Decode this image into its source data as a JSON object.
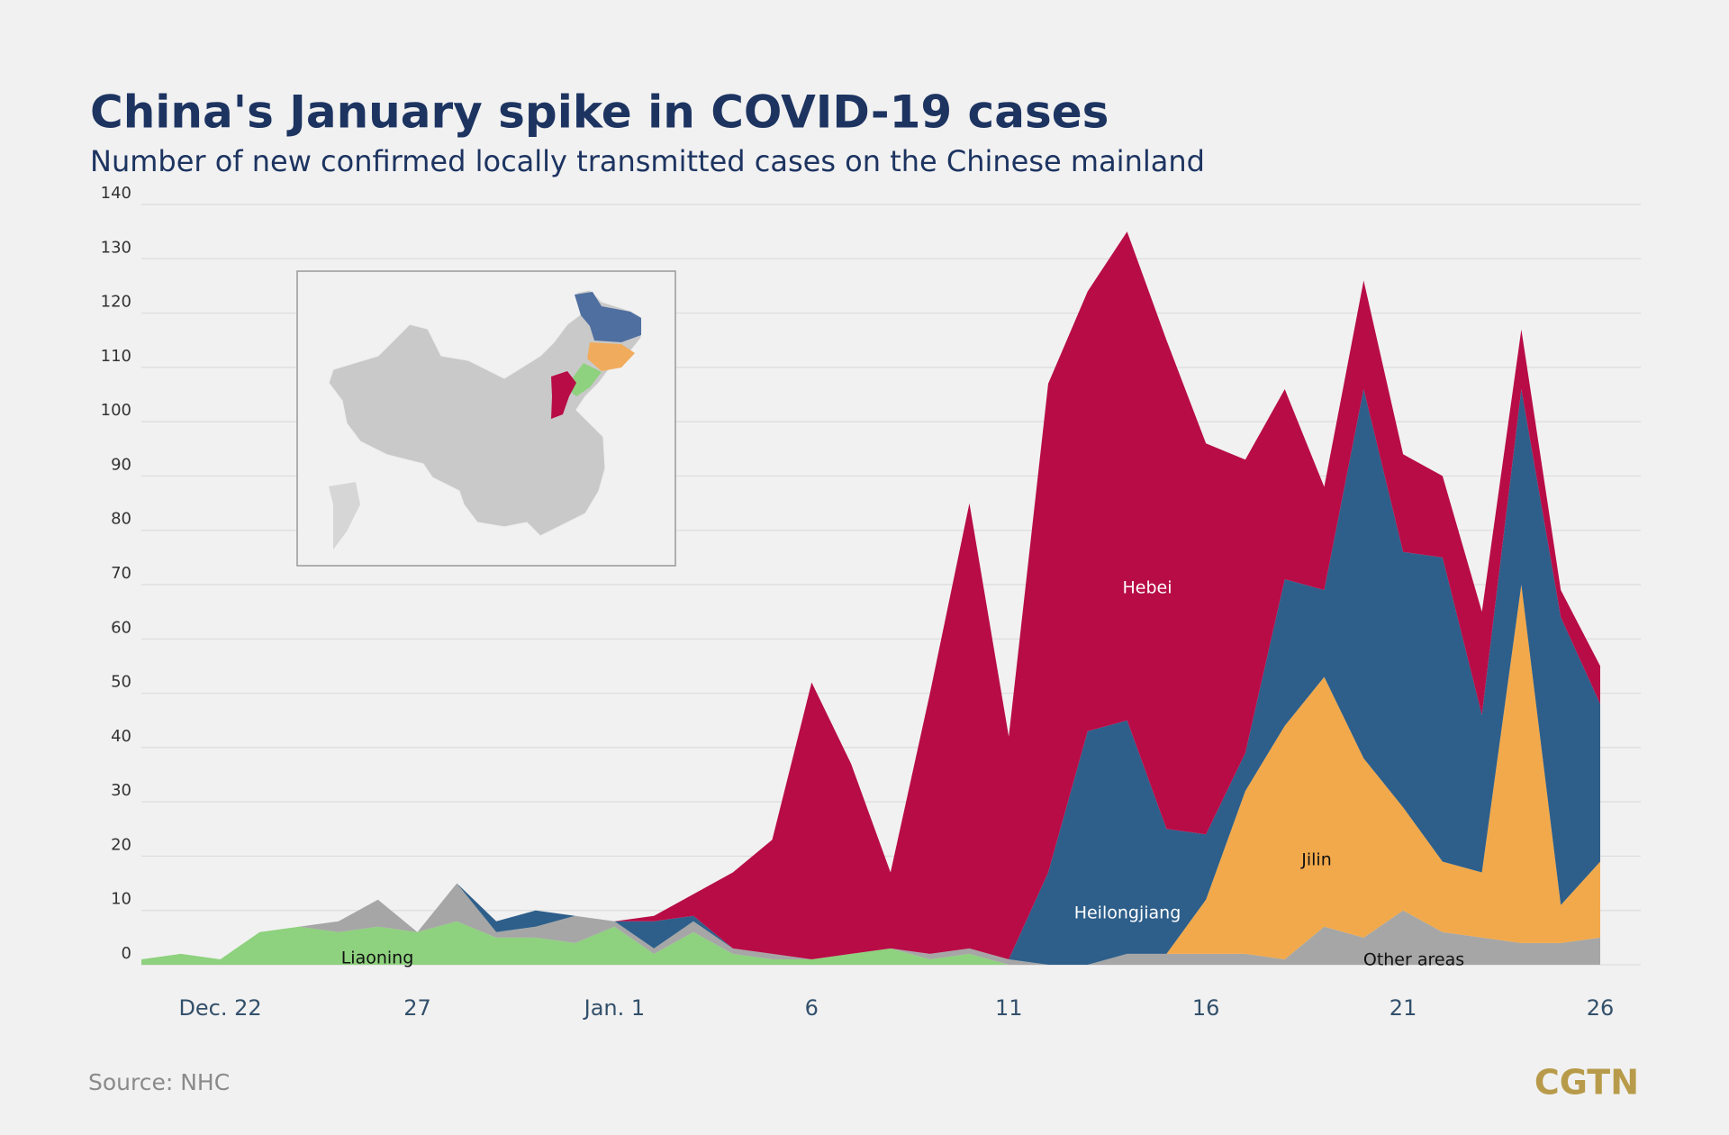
{
  "chart_data": {
    "type": "stacked_area",
    "title": "China's January spike in COVID-19 cases",
    "subtitle": "Number of new confirmed locally transmitted cases on the Chinese mainland",
    "source": "Source: NHC",
    "logo": "CGTN",
    "categories": [
      null,
      null,
      "Dec. 22",
      null,
      null,
      null,
      null,
      "27",
      null,
      null,
      null,
      null,
      "Jan. 1",
      null,
      null,
      null,
      null,
      "6",
      null,
      null,
      null,
      null,
      "11",
      null,
      null,
      null,
      null,
      "16",
      null,
      null,
      null,
      null,
      "21",
      null,
      null,
      null,
      null,
      "26"
    ],
    "ylim": [
      0,
      140
    ],
    "yticks": [
      0,
      10,
      20,
      30,
      40,
      50,
      60,
      70,
      80,
      90,
      100,
      110,
      120,
      130,
      140
    ],
    "grid": true,
    "series": [
      {
        "name": "Liaoning",
        "color": "#8ed17e",
        "values": [
          1,
          2,
          1,
          6,
          7,
          6,
          7,
          6,
          8,
          5,
          5,
          4,
          7,
          2,
          6,
          2,
          1,
          1,
          2,
          3,
          1,
          2,
          0,
          0,
          0,
          0,
          0,
          0,
          0,
          0,
          0,
          0,
          0,
          0,
          0,
          0,
          0,
          0
        ]
      },
      {
        "name": "Other areas",
        "color": "#a6a6a6",
        "values": [
          0,
          0,
          0,
          0,
          0,
          2,
          5,
          0,
          7,
          1,
          2,
          5,
          1,
          1,
          2,
          1,
          1,
          0,
          0,
          0,
          1,
          1,
          1,
          0,
          0,
          2,
          2,
          2,
          2,
          1,
          7,
          5,
          10,
          6,
          5,
          4,
          4,
          5
        ]
      },
      {
        "name": "Jilin",
        "color": "#f2a94b",
        "values": [
          0,
          0,
          0,
          0,
          0,
          0,
          0,
          0,
          0,
          0,
          0,
          0,
          0,
          0,
          0,
          0,
          0,
          0,
          0,
          0,
          0,
          0,
          0,
          0,
          0,
          0,
          0,
          10,
          30,
          43,
          46,
          33,
          19,
          13,
          12,
          66,
          7,
          14
        ]
      },
      {
        "name": "Heilongjiang",
        "color": "#2e5f8a",
        "values": [
          0,
          0,
          0,
          0,
          0,
          0,
          0,
          0,
          0,
          2,
          3,
          0,
          0,
          5,
          1,
          0,
          0,
          0,
          0,
          0,
          0,
          0,
          0,
          17,
          43,
          43,
          23,
          12,
          7,
          27,
          16,
          68,
          47,
          56,
          29,
          36,
          53,
          29
        ]
      },
      {
        "name": "Hebei",
        "color": "#b80c47",
        "values": [
          0,
          0,
          0,
          0,
          0,
          0,
          0,
          0,
          0,
          0,
          0,
          0,
          0,
          1,
          4,
          14,
          21,
          51,
          35,
          14,
          48,
          82,
          41,
          90,
          81,
          90,
          90,
          72,
          54,
          35,
          19,
          20,
          18,
          15,
          19,
          11,
          5,
          7
        ]
      }
    ]
  }
}
